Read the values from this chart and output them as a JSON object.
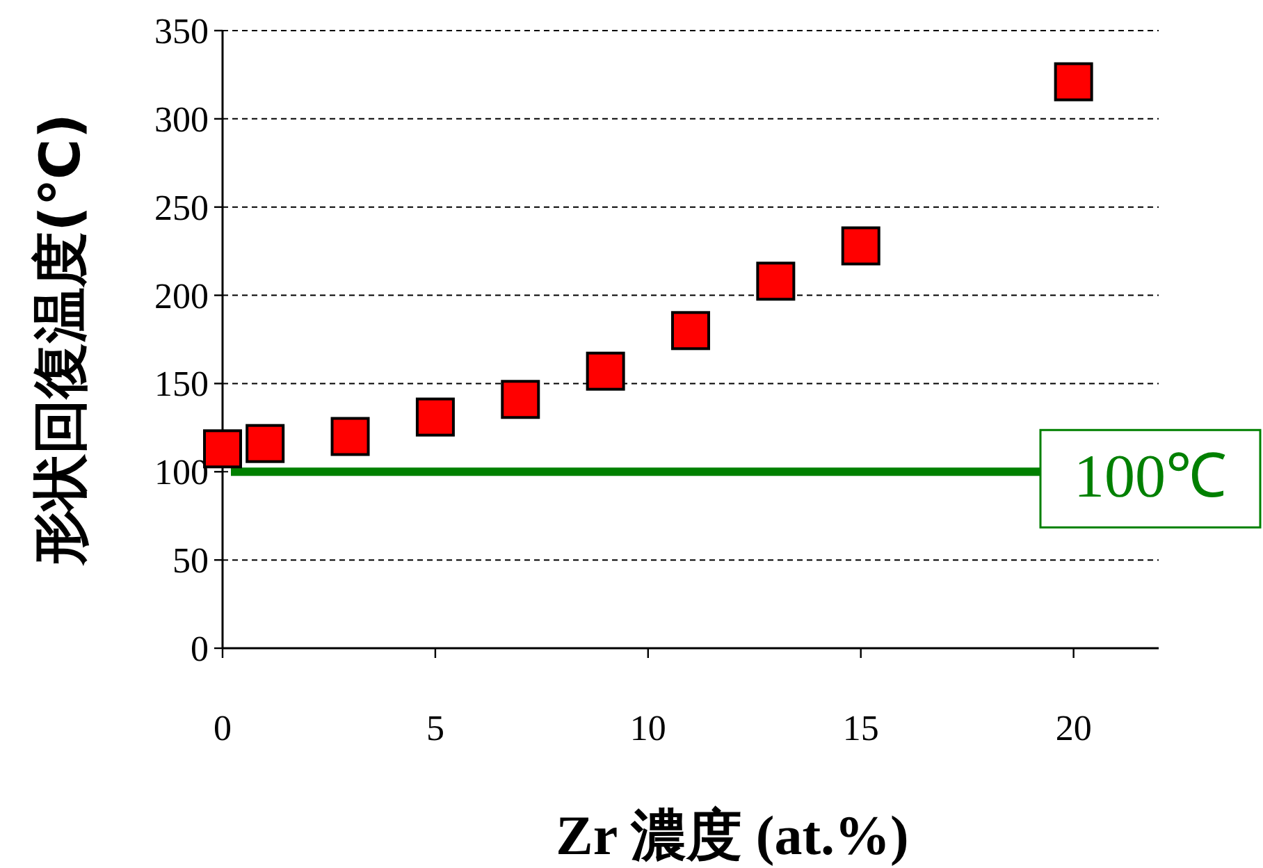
{
  "chart_data": {
    "type": "scatter",
    "xlabel": "Zr 濃度 (at.%)",
    "ylabel": "形状回復温度(℃)",
    "x": [
      0,
      1,
      3,
      5,
      7,
      9,
      11,
      13,
      15,
      20
    ],
    "series": [
      {
        "color": "#ff0000",
        "values": [
          113,
          116,
          120,
          131,
          141,
          157,
          180,
          208,
          228,
          321
        ]
      }
    ],
    "marker": "square",
    "xlim": [
      0,
      22
    ],
    "xticks": [
      0,
      5,
      10,
      15,
      20
    ],
    "ylim": [
      0,
      350
    ],
    "yticks": [
      0,
      50,
      100,
      150,
      200,
      250,
      300,
      350
    ],
    "grid": "y",
    "ref_lines": [
      {
        "axis": "y",
        "value": 100,
        "label": "100℃",
        "color": "#008000"
      }
    ]
  }
}
